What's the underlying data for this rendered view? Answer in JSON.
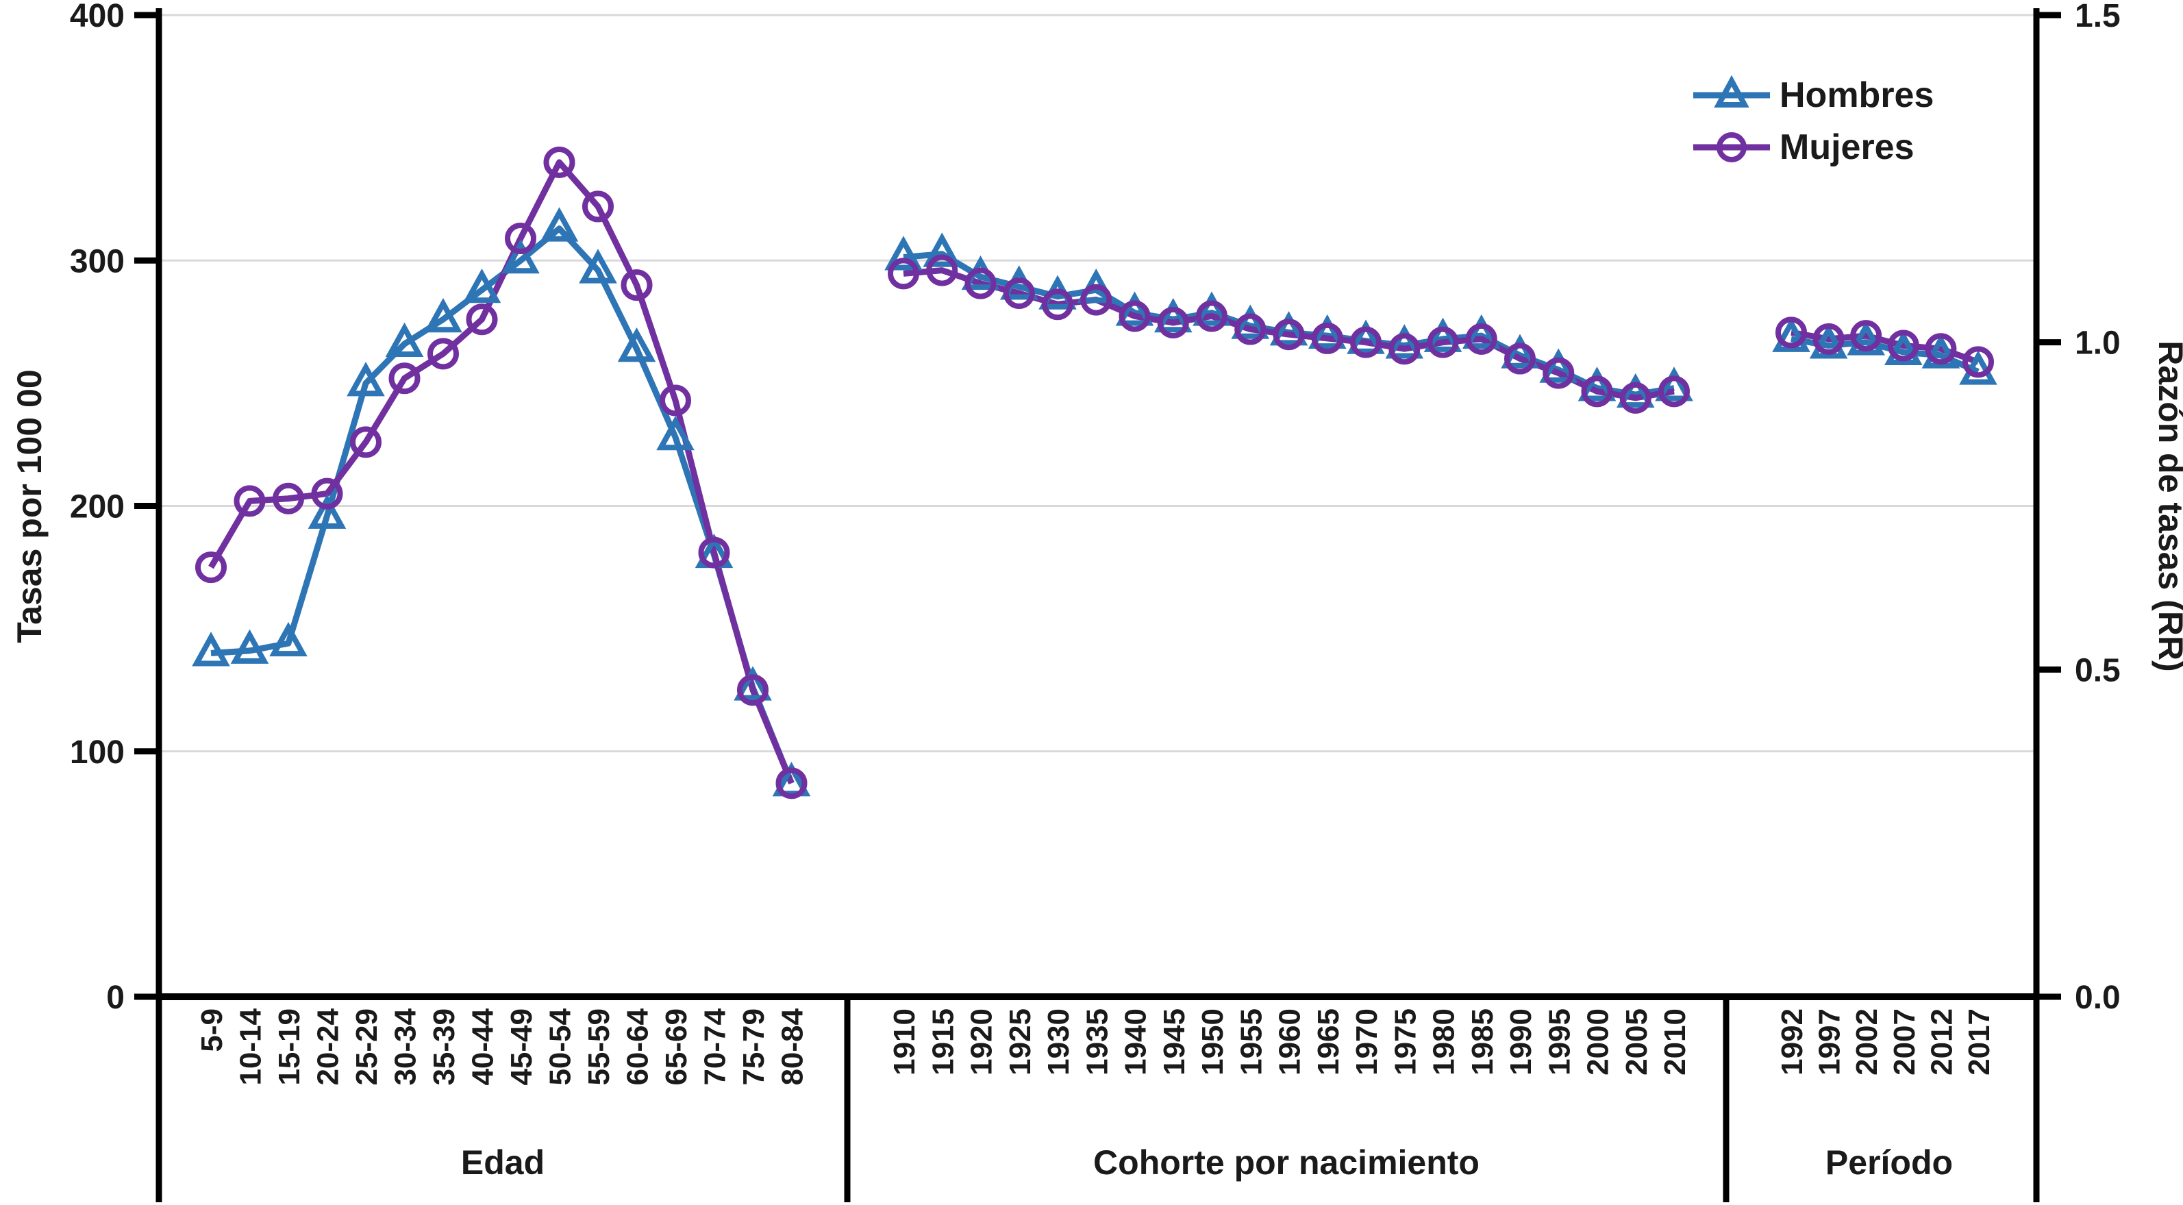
{
  "legend": {
    "items": [
      {
        "label": "Hombres",
        "color": "#2E75B6",
        "marker": "triangle"
      },
      {
        "label": "Mujeres",
        "color": "#7130A0",
        "marker": "circle"
      }
    ]
  },
  "chart_data": {
    "type": "line",
    "title": "",
    "grid": true,
    "legend_position": "top-right",
    "colors": {
      "hombres": "#2E75B6",
      "mujeres": "#7130A0",
      "gridline": "#d9d9d9",
      "axis": "#000000"
    },
    "left_axis": {
      "label": "Tasas por 100 00",
      "ticks": [
        "0",
        "100",
        "200",
        "300",
        "400"
      ],
      "tick_values": [
        0,
        100,
        200,
        300,
        400
      ],
      "grid_values": [
        100,
        200,
        300,
        400
      ],
      "range": [
        0,
        400
      ]
    },
    "right_axis": {
      "label": "Razón de tasas (RR)",
      "ticks": [
        "0.0",
        "0.5",
        "1.0",
        "1.5"
      ],
      "tick_values": [
        0,
        0.5,
        1.0,
        1.5
      ],
      "range": [
        0,
        1.5
      ]
    },
    "panels": [
      {
        "caption": "Edad",
        "value_axis": "left",
        "categories": [
          "5-9",
          "10-14",
          "15-19",
          "20-24",
          "25-29",
          "30-34",
          "35-39",
          "40-44",
          "45-49",
          "50-54",
          "55-59",
          "60-64",
          "65-69",
          "70-74",
          "75-79",
          "80-84"
        ],
        "series": [
          {
            "name": "Hombres",
            "values": [
              140,
              141,
              144,
              196,
              250,
              266,
              276,
              288,
              300,
              313,
              296,
              264,
              228,
              180,
              126,
              87
            ]
          },
          {
            "name": "Mujeres",
            "values": [
              175,
              202,
              203,
              205,
              226,
              252,
              262,
              276,
              309,
              340,
              322,
              290,
              243,
              181,
              125,
              87
            ]
          }
        ]
      },
      {
        "caption": "Cohorte por nacimiento",
        "value_axis": "right",
        "categories": [
          "1910",
          "1915",
          "1920",
          "1925",
          "1930",
          "1935",
          "1940",
          "1945",
          "1950",
          "1955",
          "1960",
          "1965",
          "1970",
          "1975",
          "1980",
          "1985",
          "1990",
          "1995",
          "2000",
          "2005",
          "2010"
        ],
        "series": [
          {
            "name": "Hombres",
            "values": [
              1.13,
              1.135,
              1.1,
              1.085,
              1.07,
              1.08,
              1.045,
              1.035,
              1.045,
              1.025,
              1.015,
              1.01,
              1.002,
              0.995,
              1.005,
              1.01,
              0.98,
              0.958,
              0.93,
              0.92,
              0.93
            ]
          },
          {
            "name": "Mujeres",
            "values": [
              1.105,
              1.11,
              1.09,
              1.075,
              1.058,
              1.065,
              1.04,
              1.03,
              1.04,
              1.02,
              1.012,
              1.006,
              1.0,
              0.99,
              1.0,
              1.005,
              0.975,
              0.953,
              0.925,
              0.915,
              0.925
            ]
          }
        ]
      },
      {
        "caption": "Período",
        "value_axis": "right",
        "categories": [
          "1992",
          "1997",
          "2002",
          "2007",
          "2012",
          "2017"
        ],
        "series": [
          {
            "name": "Hombres",
            "values": [
              1.005,
              0.995,
              1.0,
              0.985,
              0.98,
              0.955
            ]
          },
          {
            "name": "Mujeres",
            "values": [
              1.015,
              1.005,
              1.01,
              0.995,
              0.99,
              0.97
            ]
          }
        ]
      }
    ]
  }
}
